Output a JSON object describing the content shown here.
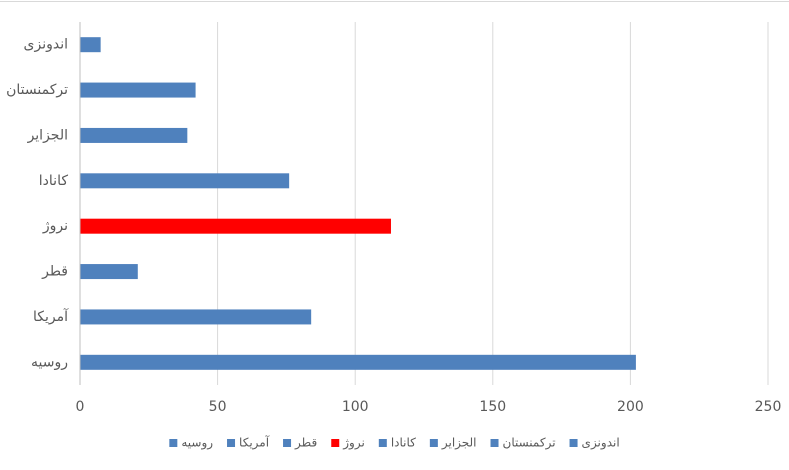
{
  "chart_data": {
    "type": "bar",
    "orientation": "horizontal",
    "categories": [
      "روسیه",
      "آمریکا",
      "قطر",
      "نروژ",
      "کانادا",
      "الجزایر",
      "ترکمنستان",
      "اندونزی"
    ],
    "values": [
      202,
      84,
      21,
      113,
      76,
      39,
      42,
      7.5
    ],
    "colors": [
      "#4f81bd",
      "#4f81bd",
      "#4f81bd",
      "#ff0000",
      "#4f81bd",
      "#4f81bd",
      "#4f81bd",
      "#4f81bd"
    ],
    "xlim": [
      0,
      250
    ],
    "xticks": [
      0,
      50,
      100,
      150,
      200,
      250
    ],
    "grid": true,
    "legend": "bottom"
  }
}
